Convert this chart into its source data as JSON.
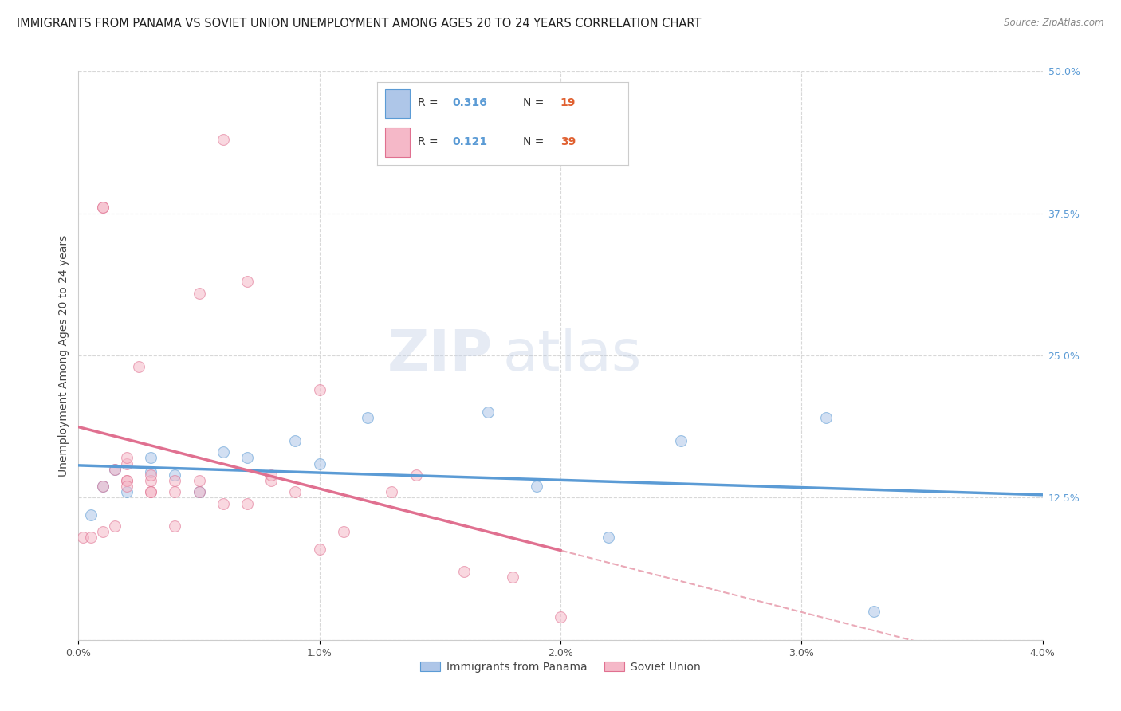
{
  "title": "IMMIGRANTS FROM PANAMA VS SOVIET UNION UNEMPLOYMENT AMONG AGES 20 TO 24 YEARS CORRELATION CHART",
  "source": "Source: ZipAtlas.com",
  "ylabel": "Unemployment Among Ages 20 to 24 years",
  "watermark_zip": "ZIP",
  "watermark_atlas": "atlas",
  "xlim": [
    0.0,
    0.04
  ],
  "ylim": [
    0.0,
    0.5
  ],
  "xticks": [
    0.0,
    0.01,
    0.02,
    0.03,
    0.04
  ],
  "xtick_labels": [
    "0.0%",
    "1.0%",
    "2.0%",
    "3.0%",
    "4.0%"
  ],
  "yticks": [
    0.0,
    0.125,
    0.25,
    0.375,
    0.5
  ],
  "ytick_labels": [
    "",
    "12.5%",
    "25.0%",
    "37.5%",
    "50.0%"
  ],
  "panama_color": "#aec6e8",
  "soviet_color": "#f5b8c8",
  "panama_line_color": "#5b9bd5",
  "soviet_line_color": "#e07090",
  "dashed_line_color": "#e8a0b0",
  "legend_R_color": "#5b9bd5",
  "legend_N_color": "#e06030",
  "panama_R": "0.316",
  "panama_N": "19",
  "soviet_R": "0.121",
  "soviet_N": "39",
  "panama_scatter_x": [
    0.0005,
    0.001,
    0.0015,
    0.002,
    0.003,
    0.003,
    0.004,
    0.005,
    0.006,
    0.007,
    0.009,
    0.01,
    0.012,
    0.017,
    0.019,
    0.022,
    0.025,
    0.031,
    0.033
  ],
  "panama_scatter_y": [
    0.11,
    0.135,
    0.15,
    0.13,
    0.148,
    0.16,
    0.145,
    0.13,
    0.165,
    0.16,
    0.175,
    0.155,
    0.195,
    0.2,
    0.135,
    0.09,
    0.175,
    0.195,
    0.025
  ],
  "soviet_scatter_x": [
    0.0002,
    0.0005,
    0.001,
    0.001,
    0.001,
    0.001,
    0.0015,
    0.0015,
    0.002,
    0.002,
    0.002,
    0.002,
    0.002,
    0.0025,
    0.003,
    0.003,
    0.003,
    0.003,
    0.004,
    0.004,
    0.004,
    0.005,
    0.005,
    0.005,
    0.006,
    0.006,
    0.007,
    0.007,
    0.008,
    0.008,
    0.009,
    0.01,
    0.01,
    0.011,
    0.013,
    0.014,
    0.016,
    0.018,
    0.02
  ],
  "soviet_scatter_y": [
    0.09,
    0.09,
    0.38,
    0.38,
    0.135,
    0.095,
    0.1,
    0.15,
    0.14,
    0.14,
    0.155,
    0.16,
    0.135,
    0.24,
    0.13,
    0.13,
    0.14,
    0.145,
    0.13,
    0.14,
    0.1,
    0.13,
    0.14,
    0.305,
    0.44,
    0.12,
    0.12,
    0.315,
    0.14,
    0.145,
    0.13,
    0.22,
    0.08,
    0.095,
    0.13,
    0.145,
    0.06,
    0.055,
    0.02
  ],
  "grid_color": "#d8d8d8",
  "background_color": "#ffffff",
  "title_fontsize": 10.5,
  "axis_label_fontsize": 10,
  "tick_fontsize": 9,
  "marker_size": 100,
  "marker_alpha": 0.55,
  "soviet_line_x_end": 0.02,
  "dashed_line_slope": 9.5,
  "dashed_line_intercept": 0.12
}
